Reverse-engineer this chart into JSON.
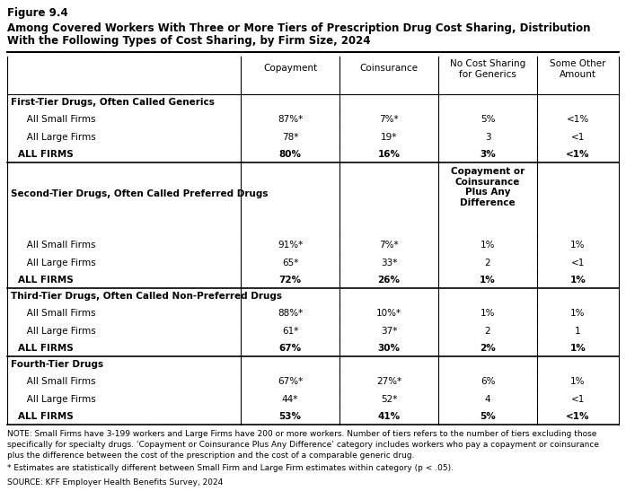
{
  "figure_label": "Figure 9.4",
  "title_line1": "Among Covered Workers With Three or More Tiers of Prescription Drug Cost Sharing, Distribution",
  "title_line2": "With the Following Types of Cost Sharing, by Firm Size, 2024",
  "col_headers": [
    "Copayment",
    "Coinsurance",
    "No Cost Sharing\nfor Generics",
    "Some Other\nAmount"
  ],
  "col2_header_alt": "Copayment or\nCoinsurance\nPlus Any\nDifference",
  "sections": [
    {
      "header": "First-Tier Drugs, Often Called Generics",
      "rows": [
        {
          "label": "   All Small Firms",
          "vals": [
            "87%*",
            "7%*",
            "5%",
            "<1%"
          ],
          "bold": false
        },
        {
          "label": "   All Large Firms",
          "vals": [
            "78*",
            "19*",
            "3",
            "<1"
          ],
          "bold": false
        },
        {
          "label": "ALL FIRMS",
          "vals": [
            "80%",
            "16%",
            "3%",
            "<1%"
          ],
          "bold": true
        }
      ],
      "alt_col3_header": false
    },
    {
      "header": "Second-Tier Drugs, Often Called Preferred Drugs",
      "rows": [
        {
          "label": "   All Small Firms",
          "vals": [
            "91%*",
            "7%*",
            "1%",
            "1%"
          ],
          "bold": false
        },
        {
          "label": "   All Large Firms",
          "vals": [
            "65*",
            "33*",
            "2",
            "<1"
          ],
          "bold": false
        },
        {
          "label": "ALL FIRMS",
          "vals": [
            "72%",
            "26%",
            "1%",
            "1%"
          ],
          "bold": true
        }
      ],
      "alt_col3_header": true
    },
    {
      "header": "Third-Tier Drugs, Often Called Non-Preferred Drugs",
      "rows": [
        {
          "label": "   All Small Firms",
          "vals": [
            "88%*",
            "10%*",
            "1%",
            "1%"
          ],
          "bold": false
        },
        {
          "label": "   All Large Firms",
          "vals": [
            "61*",
            "37*",
            "2",
            "1"
          ],
          "bold": false
        },
        {
          "label": "ALL FIRMS",
          "vals": [
            "67%",
            "30%",
            "2%",
            "1%"
          ],
          "bold": true
        }
      ],
      "alt_col3_header": false
    },
    {
      "header": "Fourth-Tier Drugs",
      "rows": [
        {
          "label": "   All Small Firms",
          "vals": [
            "67%*",
            "27%*",
            "6%",
            "1%"
          ],
          "bold": false
        },
        {
          "label": "   All Large Firms",
          "vals": [
            "44*",
            "52*",
            "4",
            "<1"
          ],
          "bold": false
        },
        {
          "label": "ALL FIRMS",
          "vals": [
            "53%",
            "41%",
            "5%",
            "<1%"
          ],
          "bold": true
        }
      ],
      "alt_col3_header": false
    }
  ],
  "note_line1": "NOTE: Small Firms have 3-199 workers and Large Firms have 200 or more workers. Number of tiers refers to the number of tiers excluding those",
  "note_line2": "specifically for specialty drugs. ‘Copayment or Coinsurance Plus Any Difference’ category includes workers who pay a copayment or coinsurance",
  "note_line3": "plus the difference between the cost of the prescription and the cost of a comparable generic drug.",
  "footnote": "* Estimates are statistically different between Small Firm and Large Firm estimates within category (p < .05).",
  "source": "SOURCE: KFF Employer Health Benefits Survey, 2024",
  "bg_color": "#ffffff"
}
